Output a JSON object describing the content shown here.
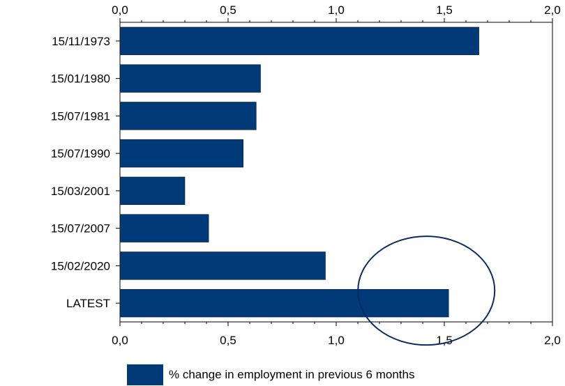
{
  "chart_data": {
    "type": "bar",
    "orientation": "horizontal",
    "categories": [
      "15/11/1973",
      "15/01/1980",
      "15/07/1981",
      "15/07/1990",
      "15/03/2001",
      "15/07/2007",
      "15/02/2020",
      "LATEST"
    ],
    "values": [
      1.66,
      0.65,
      0.63,
      0.57,
      0.3,
      0.41,
      0.95,
      1.52
    ],
    "xlim": [
      0,
      2
    ],
    "tick_values": [
      0,
      0.5,
      1,
      1.5,
      2
    ],
    "tick_labels": [
      "0,0",
      "0,5",
      "1,0",
      "1,5",
      "2,0"
    ],
    "x_axis_top_and_bottom": true,
    "grid": false,
    "bar_color": "#003a78",
    "highlight_circle": "around LATEST bar end",
    "series": [
      {
        "name": "% change in employment in previous 6 months"
      }
    ],
    "legend_position": "bottom"
  }
}
